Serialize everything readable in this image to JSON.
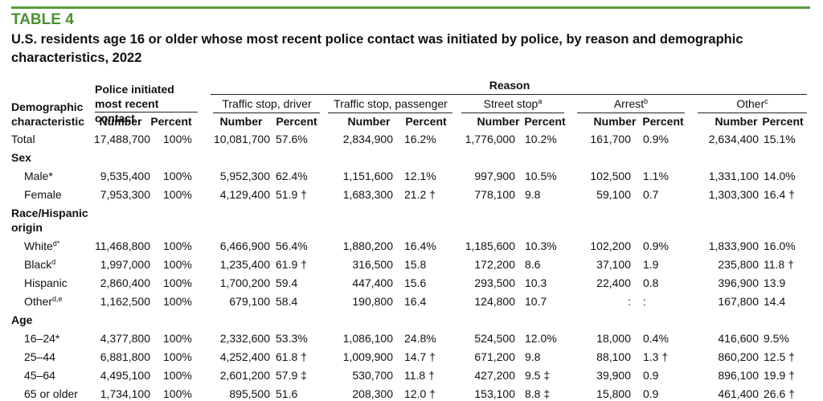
{
  "header": {
    "label": "TABLE 4",
    "title": "U.S. residents age 16 or older whose most recent police contact was initiated by police, by reason and demographic characteristics, 2022"
  },
  "table": {
    "row_header": "Demographic characteristic",
    "group_header": "Police initiated most recent contact",
    "reason_header": "Reason",
    "reasons": [
      {
        "label": "Traffic stop, driver"
      },
      {
        "label": "Traffic stop, passenger"
      },
      {
        "label": "Street stop",
        "sup": "a"
      },
      {
        "label": "Arrest",
        "sup": "b"
      },
      {
        "label": "Other",
        "sup": "c"
      }
    ],
    "subheaders": [
      "Number",
      "Percent"
    ],
    "rows": [
      {
        "label": "Total",
        "cells": [
          "17,488,700",
          "100%",
          "10,081,700",
          "57.6%",
          "2,834,900",
          "16.2%",
          "1,776,000",
          "10.2%",
          "161,700",
          "0.9%",
          "2,634,400",
          "15.1%"
        ]
      },
      {
        "section": "Sex"
      },
      {
        "label": "Male*",
        "cells": [
          "9,535,400",
          "100%",
          "5,952,300",
          "62.4%",
          "1,151,600",
          "12.1%",
          "997,900",
          "10.5%",
          "102,500",
          "1.1%",
          "1,331,100",
          "14.0%"
        ]
      },
      {
        "label": "Female",
        "cells": [
          "7,953,300",
          "100%",
          "4,129,400",
          "51.9 †",
          "1,683,300",
          "21.2 †",
          "778,100",
          "9.8",
          "59,100",
          "0.7",
          "1,303,300",
          "16.4 †"
        ]
      },
      {
        "section": "Race/Hispanic origin"
      },
      {
        "label": "White",
        "sup": "d*",
        "cells": [
          "11,468,800",
          "100%",
          "6,466,900",
          "56.4%",
          "1,880,200",
          "16.4%",
          "1,185,600",
          "10.3%",
          "102,200",
          "0.9%",
          "1,833,900",
          "16.0%"
        ]
      },
      {
        "label": "Black",
        "sup": "d",
        "cells": [
          "1,997,000",
          "100%",
          "1,235,400",
          "61.9 †",
          "316,500",
          "15.8",
          "172,200",
          "8.6",
          "37,100",
          "1.9",
          "235,800",
          "11.8 †"
        ]
      },
      {
        "label": "Hispanic",
        "cells": [
          "2,860,400",
          "100%",
          "1,700,200",
          "59.4",
          "447,400",
          "15.6",
          "293,500",
          "10.3",
          "22,400",
          "0.8",
          "396,900",
          "13.9"
        ]
      },
      {
        "label": "Other",
        "sup": "d,e",
        "cells": [
          "1,162,500",
          "100%",
          "679,100",
          "58.4",
          "190,800",
          "16.4",
          "124,800",
          "10.7",
          ":",
          ":",
          "167,800",
          "14.4"
        ]
      },
      {
        "section": "Age"
      },
      {
        "label": "16–24*",
        "cells": [
          "4,377,800",
          "100%",
          "2,332,600",
          "53.3%",
          "1,086,100",
          "24.8%",
          "524,500",
          "12.0%",
          "18,000",
          "0.4%",
          "416,600",
          "9.5%"
        ]
      },
      {
        "label": "25–44",
        "cells": [
          "6,881,800",
          "100%",
          "4,252,400",
          "61.8 †",
          "1,009,900",
          "14.7 †",
          "671,200",
          "9.8",
          "88,100",
          "1.3 †",
          "860,200",
          "12.5 †"
        ]
      },
      {
        "label": "45–64",
        "cells": [
          "4,495,100",
          "100%",
          "2,601,200",
          "57.9 ‡",
          "530,700",
          "11.8 †",
          "427,200",
          "9.5 ‡",
          "39,900",
          "0.9",
          "896,100",
          "19.9 †"
        ]
      },
      {
        "label": "65 or older",
        "cells": [
          "1,734,100",
          "100%",
          "895,500",
          "51.6",
          "208,300",
          "12.0 †",
          "153,100",
          "8.8 ‡",
          "15,800",
          "0.9",
          "461,400",
          "26.6 †"
        ]
      }
    ]
  }
}
